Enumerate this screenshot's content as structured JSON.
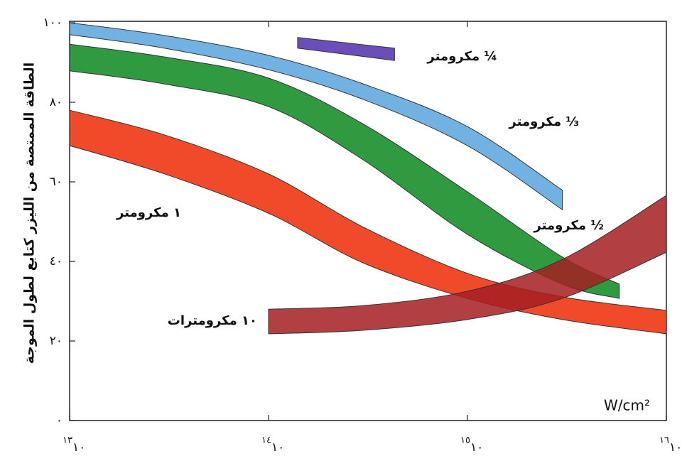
{
  "chart_data": {
    "type": "band",
    "y_label": "الطاقة الممتصة من الليزر كتابع لطول الموجة",
    "x_label": "W/cm²",
    "xscale": "log",
    "xlim": [
      10000000000000.0,
      1e+16
    ],
    "xticks": [
      {
        "value": 10000000000000.0,
        "label": "١٠",
        "exponent": "١٣"
      },
      {
        "value": 100000000000000.0,
        "label": "١٠",
        "exponent": "١٤"
      },
      {
        "value": 1000000000000000.0,
        "label": "١٠",
        "exponent": "١٥"
      },
      {
        "value": 1e+16,
        "label": "١٠",
        "exponent": "١٦"
      }
    ],
    "ylim": [
      0,
      100
    ],
    "yticks": [
      {
        "value": 0,
        "label": "٠"
      },
      {
        "value": 20,
        "label": "٢٠"
      },
      {
        "value": 40,
        "label": "٤٠"
      },
      {
        "value": 60,
        "label": "٦٠"
      },
      {
        "value": 80,
        "label": "٨٠"
      },
      {
        "value": 100,
        "label": "١٠٠"
      }
    ],
    "series": [
      {
        "name": "¼ مكرومتر",
        "color": "#6a4fb8",
        "x": [
          140000000000000.0,
          430000000000000.0
        ],
        "high": [
          96.3,
          93.6
        ],
        "low": [
          93.6,
          90.5
        ]
      },
      {
        "name": "⅓ مكرومتر",
        "color": "#72b2e2",
        "x": [
          10000000000000.0,
          30000000000000.0,
          100000000000000.0,
          300000000000000.0,
          1000000000000000.0,
          3000000000000000.0
        ],
        "high": [
          100,
          96.8,
          91.8,
          84.6,
          73.9,
          57.9
        ],
        "low": [
          97,
          93.6,
          88.2,
          80.7,
          69.1,
          53
        ]
      },
      {
        "name": "½ مكرومتر",
        "color": "#2f9a40",
        "x": [
          10000000000000.0,
          30000000000000.0,
          100000000000000.0,
          300000000000000.0,
          1000000000000000.0,
          3000000000000000.0,
          5800000000000000.0
        ],
        "high": [
          94.6,
          91.4,
          86.1,
          74.5,
          57.5,
          41.1,
          34.3
        ],
        "low": [
          87.9,
          84.6,
          78.9,
          65.5,
          46.8,
          34.3,
          30.7
        ]
      },
      {
        "name": "١ مكرومتر",
        "color": "#f04a2a",
        "x": [
          10000000000000.0,
          30000000000000.0,
          100000000000000.0,
          300000000000000.0,
          1000000000000000.0,
          3000000000000000.0,
          1e+16
        ],
        "high": [
          78,
          71.8,
          62,
          48.6,
          37,
          31.1,
          27.7
        ],
        "low": [
          69.1,
          62,
          52.1,
          39.6,
          30.7,
          25.4,
          21.8
        ]
      },
      {
        "name": "١٠ مكرومترات",
        "color": "#a51f22",
        "x": [
          100000000000000.0,
          300000000000000.0,
          1000000000000000.0,
          3000000000000000.0,
          1e+16
        ],
        "high": [
          28,
          28.9,
          32.5,
          40.5,
          56.6
        ],
        "low": [
          21.8,
          22.7,
          25.4,
          30.7,
          42.3
        ]
      }
    ]
  }
}
